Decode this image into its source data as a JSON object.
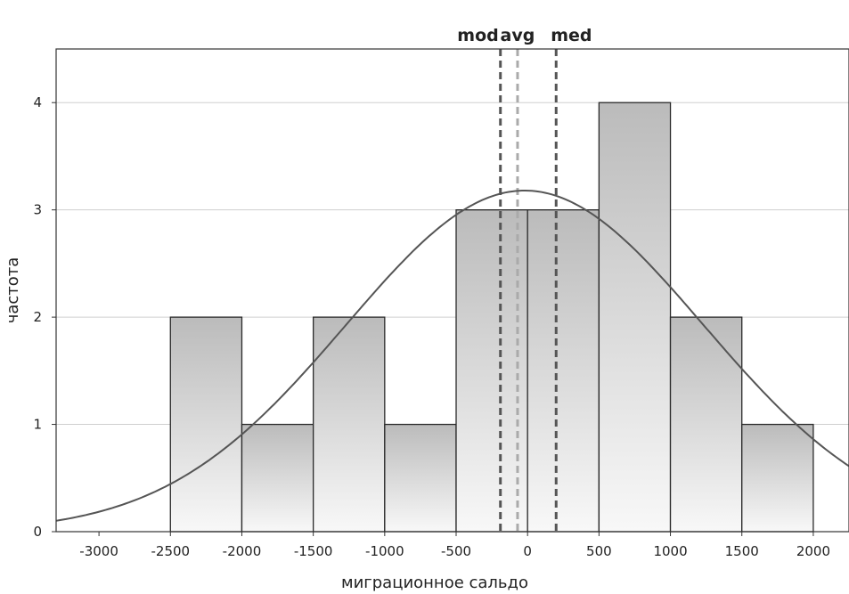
{
  "chart_data": {
    "type": "bar",
    "title": "",
    "xlabel": "миграционное сальдо",
    "ylabel": "частота",
    "xlim": [
      -3300,
      2250
    ],
    "ylim": [
      0,
      4.5
    ],
    "x_ticks": [
      -3000,
      -2500,
      -2000,
      -1500,
      -1000,
      -500,
      0,
      500,
      1000,
      1500,
      2000
    ],
    "y_ticks": [
      0,
      1,
      2,
      3,
      4
    ],
    "grid": "horizontal",
    "bins": [
      {
        "from": -2500,
        "to": -2000,
        "count": 2
      },
      {
        "from": -2000,
        "to": -1500,
        "count": 1
      },
      {
        "from": -1500,
        "to": -1000,
        "count": 2
      },
      {
        "from": -1000,
        "to": -500,
        "count": 1
      },
      {
        "from": -500,
        "to": 0,
        "count": 3
      },
      {
        "from": 0,
        "to": 500,
        "count": 3
      },
      {
        "from": 500,
        "to": 1000,
        "count": 4
      },
      {
        "from": 1000,
        "to": 1500,
        "count": 2
      },
      {
        "from": 1500,
        "to": 2000,
        "count": 1
      }
    ],
    "normal_curve": {
      "mean": -20,
      "sd": 1250,
      "peak": 3.18
    },
    "markers": [
      {
        "label": "mod",
        "x": -190,
        "color": "#555555"
      },
      {
        "label": "avg",
        "x": -70,
        "color": "#aaaaaa"
      },
      {
        "label": "med",
        "x": 200,
        "color": "#555555"
      }
    ],
    "colors": {
      "bar_top": "#bbbbbb",
      "bar_bottom": "#f8f8f8",
      "bar_stroke": "#2a2a2a",
      "curve": "#555555",
      "grid": "#cfcfcf"
    }
  }
}
